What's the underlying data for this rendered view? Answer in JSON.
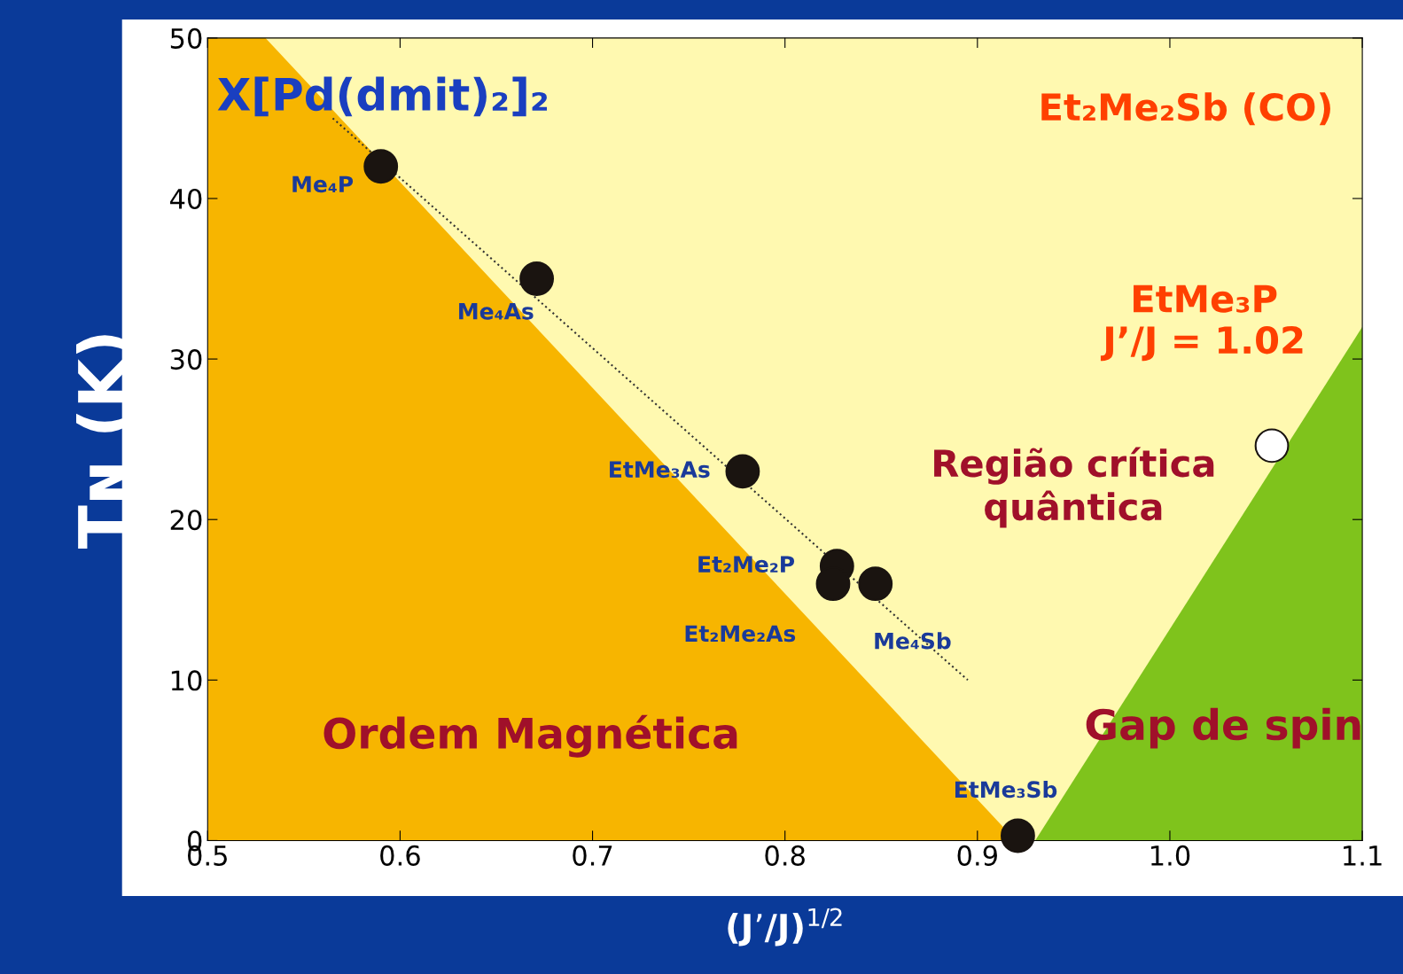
{
  "chart_data": {
    "type": "scatter",
    "xlabel": "(J’/J)$^{1/2}$",
    "ylabel": "Tɴ (K)",
    "xlim": [
      0.5,
      1.1
    ],
    "xticks": [
      0.5,
      0.6,
      0.7,
      0.8,
      0.9,
      {
        "value": 1.0,
        "label": "1.0"
      },
      1.1
    ],
    "ylim": [
      0,
      50
    ],
    "yticks": [
      0,
      10,
      20,
      30,
      40,
      50
    ],
    "grid": false,
    "marker": "circle",
    "series": [
      {
        "color": "#1a1410",
        "x": [
          0.59,
          0.671,
          0.778,
          0.827,
          0.825,
          0.847,
          0.921
        ],
        "values": [
          42.0,
          35.0,
          23.0,
          17.1,
          16.0,
          16.0,
          0.3
        ]
      },
      {
        "color": "#ffffff",
        "x": [
          1.053
        ],
        "values": [
          24.6
        ]
      },
      {
        "type": "line",
        "marker": "none",
        "color": "#333333",
        "line_style": "dotted",
        "x": [
          0.565,
          0.895
        ],
        "values": [
          45,
          10
        ]
      }
    ],
    "annotations": [
      "X[Pd(dmit)₂]₂",
      {
        "text": "Me₄P",
        "x": 0.59,
        "y": 42.0
      },
      {
        "text": "Me₄As",
        "x": 0.671,
        "y": 35.0
      },
      {
        "text": "EtMe₃As",
        "x": 0.778,
        "y": 23.0
      },
      {
        "text": "Et₂Me₂P",
        "x": 0.827,
        "y": 17.1
      },
      {
        "text": "Et₂Me₂As",
        "x": 0.825,
        "y": 16.0
      },
      {
        "text": "Me₄Sb",
        "x": 0.847,
        "y": 16.0
      },
      {
        "text": "EtMe₃Sb",
        "x": 0.921,
        "y": 0.3
      },
      "Et₂Me₂Sb (CO)",
      {
        "text": "EtMe₃P\nJ’/J = 1.02",
        "x": 1.053,
        "y": 24.6
      },
      "Região crítica\nquântica",
      "Ordem Magnética",
      "Gap de spin"
    ]
  }
}
